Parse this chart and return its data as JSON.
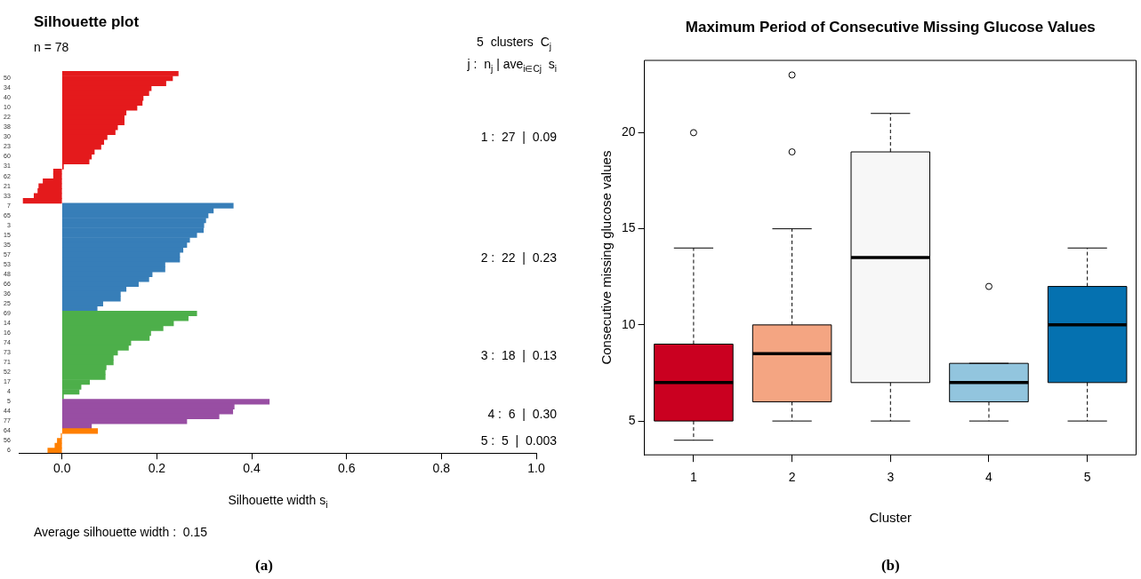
{
  "chart_data": [
    {
      "type": "bar",
      "orientation": "horizontal",
      "title": "Silhouette plot",
      "subtitle": "n = 78",
      "xlabel": "Silhouette width s$_{i}$",
      "categories": [
        null,
        "50",
        null,
        "34",
        null,
        "40",
        null,
        "10",
        null,
        "22",
        null,
        "38",
        null,
        "30",
        null,
        "23",
        null,
        "60",
        null,
        "31",
        null,
        "62",
        null,
        "21",
        null,
        "33",
        null,
        "7",
        null,
        "65",
        null,
        "3",
        null,
        "15",
        null,
        "35",
        null,
        "57",
        null,
        "53",
        null,
        "48",
        null,
        "66",
        null,
        "36",
        null,
        "25",
        null,
        "69",
        null,
        "14",
        null,
        "16",
        null,
        "74",
        null,
        "73",
        null,
        "71",
        null,
        "52",
        null,
        "17",
        null,
        "4",
        null,
        "5",
        null,
        "44",
        null,
        "77",
        null,
        "64",
        null,
        "56",
        null,
        "6"
      ],
      "values": [
        0.245,
        0.233,
        0.219,
        0.188,
        0.183,
        0.171,
        0.169,
        0.158,
        0.135,
        0.131,
        0.131,
        0.117,
        0.112,
        0.095,
        0.088,
        0.082,
        0.068,
        0.062,
        0.057,
        0.003,
        -0.018,
        -0.018,
        -0.04,
        -0.049,
        -0.051,
        -0.059,
        -0.082,
        0.361,
        0.319,
        0.308,
        0.303,
        0.299,
        0.298,
        0.284,
        0.269,
        0.263,
        0.255,
        0.248,
        0.248,
        0.217,
        0.217,
        0.19,
        0.183,
        0.161,
        0.135,
        0.123,
        0.123,
        0.086,
        0.074,
        0.284,
        0.266,
        0.235,
        0.213,
        0.187,
        0.184,
        0.145,
        0.14,
        0.117,
        0.108,
        0.108,
        0.093,
        0.091,
        0.091,
        0.058,
        0.04,
        0.036,
        0.003,
        0.437,
        0.363,
        0.36,
        0.331,
        0.263,
        0.062,
        0.075,
        -0.002,
        -0.01,
        -0.015,
        -0.03
      ],
      "colors": [
        "#e41a1c",
        "#e41a1c",
        "#e41a1c",
        "#e41a1c",
        "#e41a1c",
        "#e41a1c",
        "#e41a1c",
        "#e41a1c",
        "#e41a1c",
        "#e41a1c",
        "#e41a1c",
        "#e41a1c",
        "#e41a1c",
        "#e41a1c",
        "#e41a1c",
        "#e41a1c",
        "#e41a1c",
        "#e41a1c",
        "#e41a1c",
        "#e41a1c",
        "#e41a1c",
        "#e41a1c",
        "#e41a1c",
        "#e41a1c",
        "#e41a1c",
        "#e41a1c",
        "#e41a1c",
        "#377eb8",
        "#377eb8",
        "#377eb8",
        "#377eb8",
        "#377eb8",
        "#377eb8",
        "#377eb8",
        "#377eb8",
        "#377eb8",
        "#377eb8",
        "#377eb8",
        "#377eb8",
        "#377eb8",
        "#377eb8",
        "#377eb8",
        "#377eb8",
        "#377eb8",
        "#377eb8",
        "#377eb8",
        "#377eb8",
        "#377eb8",
        "#377eb8",
        "#4daf4a",
        "#4daf4a",
        "#4daf4a",
        "#4daf4a",
        "#4daf4a",
        "#4daf4a",
        "#4daf4a",
        "#4daf4a",
        "#4daf4a",
        "#4daf4a",
        "#4daf4a",
        "#4daf4a",
        "#4daf4a",
        "#4daf4a",
        "#4daf4a",
        "#4daf4a",
        "#4daf4a",
        "#4daf4a",
        "#984ea3",
        "#984ea3",
        "#984ea3",
        "#984ea3",
        "#984ea3",
        "#984ea3",
        "#ff7f00",
        "#ff7f00",
        "#ff7f00",
        "#ff7f00",
        "#ff7f00"
      ],
      "xlim": [
        -0.09,
        1.0
      ],
      "xticks": [
        {
          "value": 0,
          "label": "0.0"
        },
        0.2,
        0.4,
        0.6,
        0.8,
        {
          "value": 1,
          "label": "1.0"
        }
      ],
      "grid": false,
      "legend": false,
      "annotations": [
        "5  clusters  C$_{j}$",
        "j :  n$_{j}$ | ave$_{i∈Cj}$  s$_{i}$",
        "1 :  27  |  0.09",
        "2 :  22  |  0.23",
        "3 :  18  |  0.13",
        "4 :  6  |  0.30",
        "5 :  5  |  0.003",
        "Average silhouette width :  0.15",
        "(a)"
      ]
    },
    {
      "type": "box",
      "title": "Maximum Period of Consecutive Missing Glucose Values",
      "xlabel": "Cluster",
      "ylabel": "Consecutive missing glucose values",
      "categories": [
        "1",
        "2",
        "3",
        "4",
        "5"
      ],
      "boxes": [
        {
          "low": 4,
          "q1": 5,
          "median": 7,
          "q3": 9,
          "high": 14,
          "outliers": [
            20
          ]
        },
        {
          "low": 5,
          "q1": 6,
          "median": 8.5,
          "q3": 10,
          "high": 15,
          "outliers": [
            19,
            23
          ]
        },
        {
          "low": 5,
          "q1": 7,
          "median": 13.5,
          "q3": 19,
          "high": 21
        },
        {
          "low": 5,
          "q1": 6,
          "median": 7,
          "q3": 8,
          "high": 8,
          "outliers": [
            12
          ]
        },
        {
          "low": 5,
          "q1": 7,
          "median": 10,
          "q3": 12,
          "high": 14
        }
      ],
      "colors": [
        "#ca0020",
        "#f4a582",
        "#f7f7f7",
        "#92c5de",
        "#0571b0"
      ],
      "ylim": [
        3.24,
        23.76
      ],
      "yticks": [
        5,
        10,
        15,
        20
      ],
      "grid": false,
      "legend": false,
      "annotations": [
        "(b)"
      ]
    }
  ]
}
